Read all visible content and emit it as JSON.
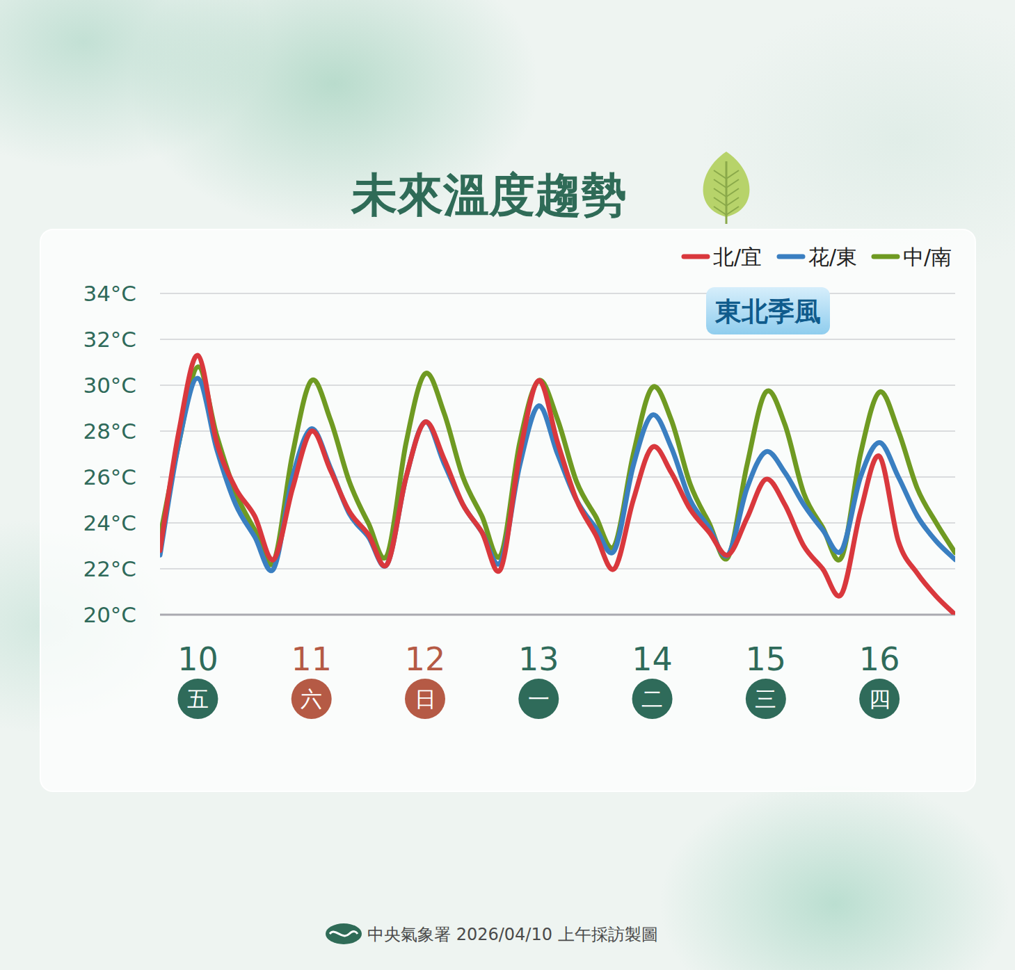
{
  "chart_data": {
    "type": "line",
    "title": "未來溫度趨勢",
    "annotation": "東北季風",
    "source": "中央氣象署 2026/04/10 上午採訪製圖",
    "categories": [
      null,
      null,
      "10",
      null,
      null,
      null,
      null,
      null,
      "11",
      null,
      null,
      null,
      null,
      null,
      "12",
      null,
      null,
      null,
      null,
      null,
      "13",
      null,
      null,
      null,
      null,
      null,
      "14",
      null,
      null,
      null,
      null,
      null,
      "15",
      null,
      null,
      null,
      null,
      null,
      "16",
      null,
      null,
      null,
      null
    ],
    "category_sublabels": [
      null,
      null,
      "五",
      null,
      null,
      null,
      null,
      null,
      "六",
      null,
      null,
      null,
      null,
      null,
      "日",
      null,
      null,
      null,
      null,
      null,
      "一",
      null,
      null,
      null,
      null,
      null,
      "二",
      null,
      null,
      null,
      null,
      null,
      "三",
      null,
      null,
      null,
      null,
      null,
      "四",
      null,
      null,
      null,
      null
    ],
    "category_colors": [
      null,
      null,
      "#2f6b5a",
      null,
      null,
      null,
      null,
      null,
      "#b55a45",
      null,
      null,
      null,
      null,
      null,
      "#b55a45",
      null,
      null,
      null,
      null,
      null,
      "#2f6b5a",
      null,
      null,
      null,
      null,
      null,
      "#2f6b5a",
      null,
      null,
      null,
      null,
      null,
      "#2f6b5a",
      null,
      null,
      null,
      null,
      null,
      "#2f6b5a",
      null,
      null,
      null,
      null
    ],
    "series": [
      {
        "name": "北/宜",
        "color": "#d9383d",
        "values": [
          22.8,
          28.0,
          31.3,
          27.5,
          25.5,
          24.3,
          22.4,
          25.5,
          28.0,
          26.3,
          24.5,
          23.5,
          22.2,
          26.0,
          28.4,
          26.8,
          24.8,
          23.6,
          22.0,
          27.0,
          30.2,
          27.5,
          25.0,
          23.5,
          22.0,
          25.0,
          27.3,
          26.2,
          24.6,
          23.6,
          22.6,
          24.2,
          25.9,
          24.8,
          23.0,
          22.0,
          20.9,
          24.5,
          26.9,
          23.2,
          21.8,
          20.8,
          20.0
        ]
      },
      {
        "name": "花/東",
        "color": "#3a7fc1",
        "values": [
          22.6,
          27.5,
          30.3,
          27.2,
          24.8,
          23.4,
          22.0,
          26.0,
          28.1,
          26.4,
          24.4,
          23.4,
          22.2,
          26.0,
          28.4,
          26.6,
          24.8,
          23.6,
          22.3,
          26.5,
          29.1,
          27.0,
          25.0,
          23.8,
          22.8,
          26.5,
          28.7,
          27.3,
          25.0,
          23.8,
          22.6,
          25.5,
          27.1,
          26.2,
          24.8,
          23.7,
          22.8,
          26.0,
          27.5,
          26.0,
          24.3,
          23.2,
          22.4
        ]
      },
      {
        "name": "中/南",
        "color": "#6f9a22",
        "values": [
          23.4,
          27.5,
          30.8,
          27.8,
          25.3,
          23.7,
          22.3,
          27.0,
          30.2,
          28.5,
          25.8,
          24.0,
          22.6,
          27.5,
          30.5,
          28.8,
          26.0,
          24.3,
          22.6,
          27.5,
          30.2,
          28.5,
          25.8,
          24.3,
          23.0,
          27.0,
          29.9,
          28.5,
          25.7,
          24.0,
          22.5,
          26.5,
          29.7,
          28.3,
          25.3,
          23.8,
          22.5,
          27.0,
          29.7,
          28.0,
          25.5,
          24.0,
          22.7
        ]
      }
    ],
    "ylim": [
      20,
      34
    ],
    "yticks": [
      {
        "value": 20,
        "label": "20°C"
      },
      {
        "value": 22,
        "label": "22°C"
      },
      {
        "value": 24,
        "label": "24°C"
      },
      {
        "value": 26,
        "label": "26°C"
      },
      {
        "value": 28,
        "label": "28°C"
      },
      {
        "value": 30,
        "label": "30°C"
      },
      {
        "value": 32,
        "label": "32°C"
      },
      {
        "value": 34,
        "label": "34°C"
      }
    ],
    "grid": true,
    "legend": "top-right"
  }
}
